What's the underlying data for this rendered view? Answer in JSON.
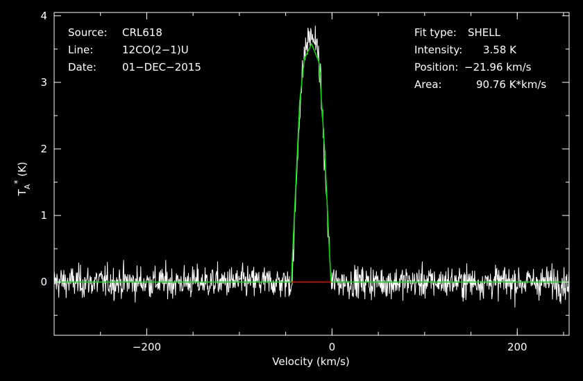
{
  "chart_data": {
    "type": "line",
    "xlabel": "Velocity (km/s)",
    "ylabel": {
      "main": "T",
      "sub": "A",
      "sup": "*",
      "unit": " (K)"
    },
    "xlim": [
      -300,
      256
    ],
    "ylim": [
      -0.8,
      4.05
    ],
    "x_ticks": [
      -200,
      0,
      200
    ],
    "y_ticks": [
      0,
      1,
      2,
      3,
      4
    ],
    "colors": {
      "spectrum": "#ffffff",
      "fit": "#00e000",
      "baseline_window": "#ff0000",
      "background": "#000000"
    },
    "info_left": [
      {
        "key": "Source:",
        "value": "CRL618"
      },
      {
        "key": "Line:",
        "value": "12CO(2−1)U"
      },
      {
        "key": "Date:",
        "value": "01−DEC−2015"
      }
    ],
    "info_right": [
      {
        "key": "Fit type:",
        "value": "SHELL"
      },
      {
        "key": "Intensity:",
        "value": "3.58 K"
      },
      {
        "key": "Position:",
        "value": "−21.96 km/s"
      },
      {
        "key": "Area:",
        "value": "90.76 K*km/s"
      }
    ],
    "series": [
      {
        "noise_rms": 0.12,
        "peak_profile": {
          "x": [
            -43,
            -35,
            -30,
            -26,
            -22,
            -18,
            -14,
            -10,
            -5,
            -1
          ],
          "y": [
            0,
            2.6,
            3.4,
            3.65,
            3.7,
            3.62,
            3.35,
            2.4,
            1.0,
            0
          ]
        },
        "velocity_range": [
          -300,
          256
        ],
        "channel_width": 0.5
      },
      {
        "fit_curve": {
          "x": [
            -300,
            -44,
            -35,
            -30,
            -22,
            -14,
            -8,
            -3,
            -1,
            256
          ],
          "y": [
            0,
            0,
            2.7,
            3.35,
            3.58,
            3.3,
            2.0,
            0.5,
            0,
            0
          ]
        }
      }
    ],
    "baseline_window": [
      -44,
      -1
    ]
  }
}
